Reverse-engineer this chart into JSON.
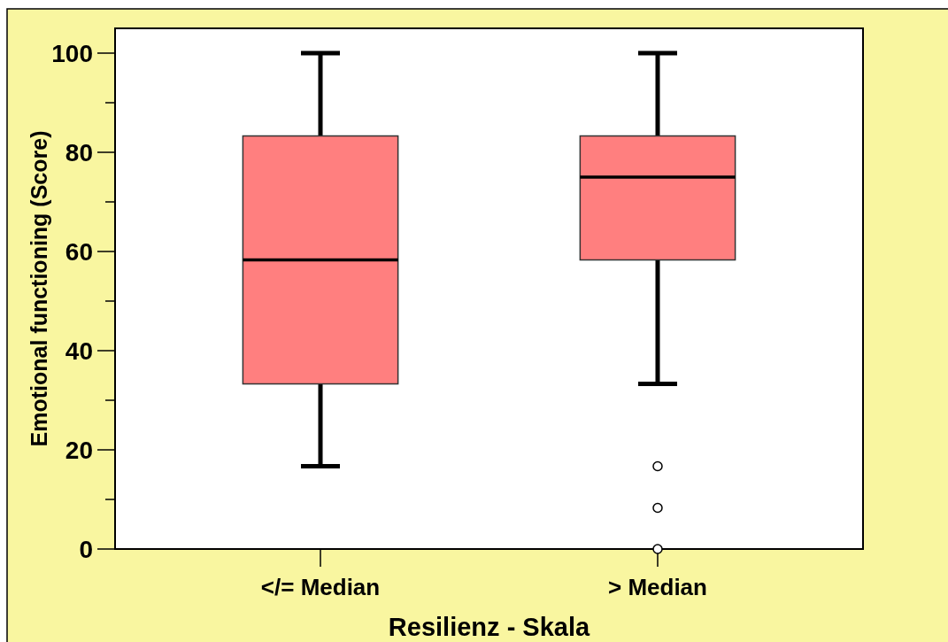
{
  "chart_data": {
    "type": "box",
    "xlabel": "Resilienz - Skala",
    "ylabel": "Emotional functioning (Score)",
    "categories": [
      "</= Median",
      "> Median"
    ],
    "series": [
      {
        "color": "#ff7f7f",
        "boxes": [
          {
            "low": 16.7,
            "q1": 33.3,
            "median": 58.3,
            "q3": 83.3,
            "high": 100
          },
          {
            "low": 33.3,
            "q1": 58.3,
            "median": 75,
            "q3": 83.3,
            "high": 100,
            "outliers": [
              16.7,
              8.3,
              0
            ]
          }
        ]
      }
    ],
    "ylim": [
      0,
      105
    ],
    "yticks": [
      0,
      {
        "value": 10,
        "label": null
      },
      20,
      {
        "value": 30,
        "label": null
      },
      40,
      {
        "value": 50,
        "label": null
      },
      60,
      {
        "value": 70,
        "label": null
      },
      80,
      {
        "value": 90,
        "label": null
      },
      100
    ]
  }
}
